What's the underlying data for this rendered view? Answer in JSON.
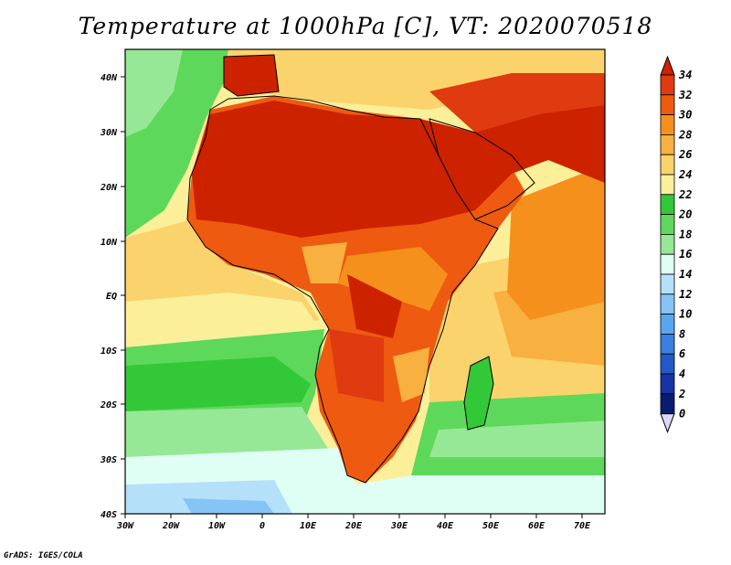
{
  "title": "Temperature at 1000hPa [C], VT: 2020070518",
  "credit": "GrADS: IGES/COLA",
  "lon_labels": [
    "30W",
    "20W",
    "10W",
    "0",
    "10E",
    "20E",
    "30E",
    "40E",
    "50E",
    "60E",
    "70E"
  ],
  "lat_labels": [
    "40N",
    "30N",
    "20N",
    "10N",
    "EQ",
    "10S",
    "20S",
    "30S",
    "40S"
  ],
  "colorbar": {
    "levels": [
      "34",
      "32",
      "30",
      "28",
      "26",
      "24",
      "22",
      "20",
      "18",
      "16",
      "14",
      "12",
      "10",
      "8",
      "6",
      "4",
      "2",
      "0"
    ],
    "colors": [
      "#cc2200",
      "#e03a10",
      "#ee5a10",
      "#f5901c",
      "#f8b040",
      "#fad36c",
      "#fbef9a",
      "#33c838",
      "#5ed85a",
      "#96e896",
      "#e0fff4",
      "#b4e0fa",
      "#86c4f5",
      "#58a6ee",
      "#3a80e0",
      "#2458c8",
      "#1434a4",
      "#081c70",
      "#dcd8f8"
    ]
  },
  "map_palette": {
    "ocean_cool": "#e0fff4",
    "ocean_mid": "#96e896",
    "ocean_green": "#5ed85a",
    "ocean_warm": "#fbef9a",
    "arabian_sea": "#f5901c",
    "land_hot": "#cc2200",
    "land_warm": "#ee5a10",
    "southern_ocean": "#86c4f5"
  }
}
